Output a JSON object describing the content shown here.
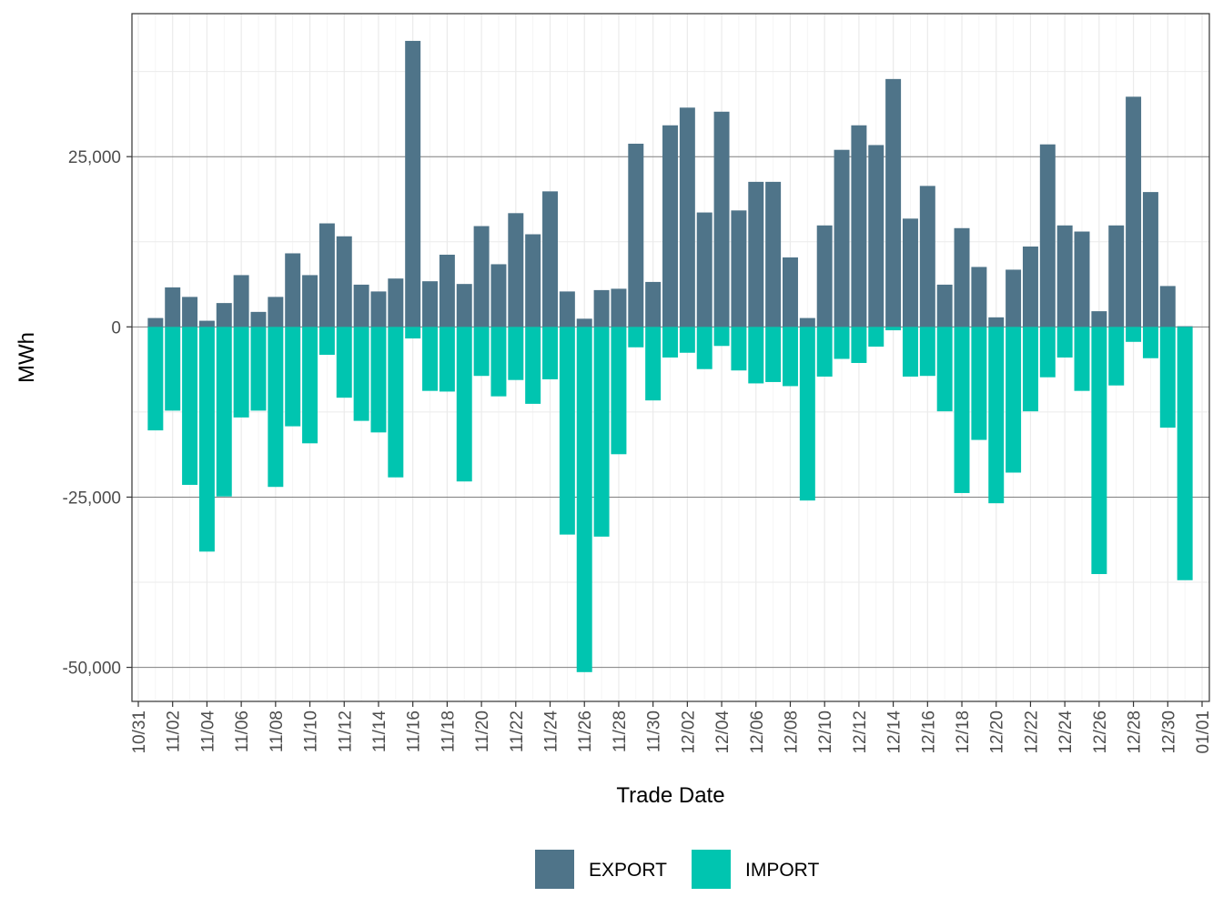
{
  "chart_data": {
    "type": "bar",
    "stacked": "diverging",
    "xlabel": "Trade Date",
    "ylabel": "MWh",
    "x_tick_labels": [
      "10/31",
      "11/02",
      "11/04",
      "11/06",
      "11/08",
      "11/10",
      "11/12",
      "11/14",
      "11/16",
      "11/18",
      "11/20",
      "11/22",
      "11/24",
      "11/26",
      "11/28",
      "11/30",
      "12/02",
      "12/04",
      "12/06",
      "12/08",
      "12/10",
      "12/12",
      "12/14",
      "12/16",
      "12/18",
      "12/20",
      "12/22",
      "12/24",
      "12/26",
      "12/28",
      "12/30",
      "01/01"
    ],
    "y_ticks": [
      25000,
      0,
      -25000,
      -50000
    ],
    "y_tick_labels": [
      "25,000",
      "0",
      "-25,000",
      "-50,000"
    ],
    "ylim": [
      -55000,
      46000
    ],
    "grid": true,
    "legend_position": "bottom",
    "categories": [
      "11/01",
      "11/02",
      "11/03",
      "11/04",
      "11/05",
      "11/06",
      "11/07",
      "11/08",
      "11/09",
      "11/10",
      "11/11",
      "11/12",
      "11/13",
      "11/14",
      "11/15",
      "11/16",
      "11/17",
      "11/18",
      "11/19",
      "11/20",
      "11/21",
      "11/22",
      "11/23",
      "11/24",
      "11/25",
      "11/26",
      "11/27",
      "11/28",
      "11/29",
      "11/30",
      "12/01",
      "12/02",
      "12/03",
      "12/04",
      "12/05",
      "12/06",
      "12/07",
      "12/08",
      "12/09",
      "12/10",
      "12/11",
      "12/12",
      "12/13",
      "12/14",
      "12/15",
      "12/16",
      "12/17",
      "12/18",
      "12/19",
      "12/20",
      "12/21",
      "12/22",
      "12/23",
      "12/24",
      "12/25",
      "12/26",
      "12/27",
      "12/28",
      "12/29",
      "12/30",
      "12/31"
    ],
    "series": [
      {
        "name": "EXPORT",
        "color": "#4f7489",
        "values": [
          1300,
          5800,
          4400,
          900,
          3500,
          7600,
          2200,
          4400,
          10800,
          7600,
          15200,
          13300,
          6200,
          5200,
          7100,
          42000,
          6700,
          10600,
          6300,
          14800,
          9200,
          16700,
          13600,
          19900,
          5200,
          1200,
          5400,
          5600,
          26900,
          6600,
          29600,
          32200,
          16800,
          31600,
          17100,
          21300,
          21300,
          10200,
          1300,
          14900,
          26000,
          29600,
          26700,
          36400,
          15900,
          20700,
          6200,
          14500,
          8800,
          1400,
          8400,
          11800,
          26800,
          14900,
          14000,
          2300,
          14900,
          33800,
          19800,
          6000,
          100
        ]
      },
      {
        "name": "IMPORT",
        "color": "#00c5b0",
        "values": [
          -15200,
          -12300,
          -23200,
          -33000,
          -24900,
          -13300,
          -12300,
          -23500,
          -14600,
          -17100,
          -4100,
          -10400,
          -13800,
          -15500,
          -22100,
          -1700,
          -9400,
          -9500,
          -22700,
          -7200,
          -10200,
          -7800,
          -11300,
          -7700,
          -30500,
          -50700,
          -30800,
          -18700,
          -3000,
          -10800,
          -4500,
          -3800,
          -6200,
          -2800,
          -6400,
          -8300,
          -8100,
          -8700,
          -25500,
          -7300,
          -4700,
          -5300,
          -2900,
          -500,
          -7300,
          -7200,
          -12400,
          -24400,
          -16600,
          -25900,
          -21400,
          -12400,
          -7400,
          -4500,
          -9400,
          -36300,
          -8600,
          -2200,
          -4600,
          -14800,
          -37200
        ]
      }
    ]
  }
}
